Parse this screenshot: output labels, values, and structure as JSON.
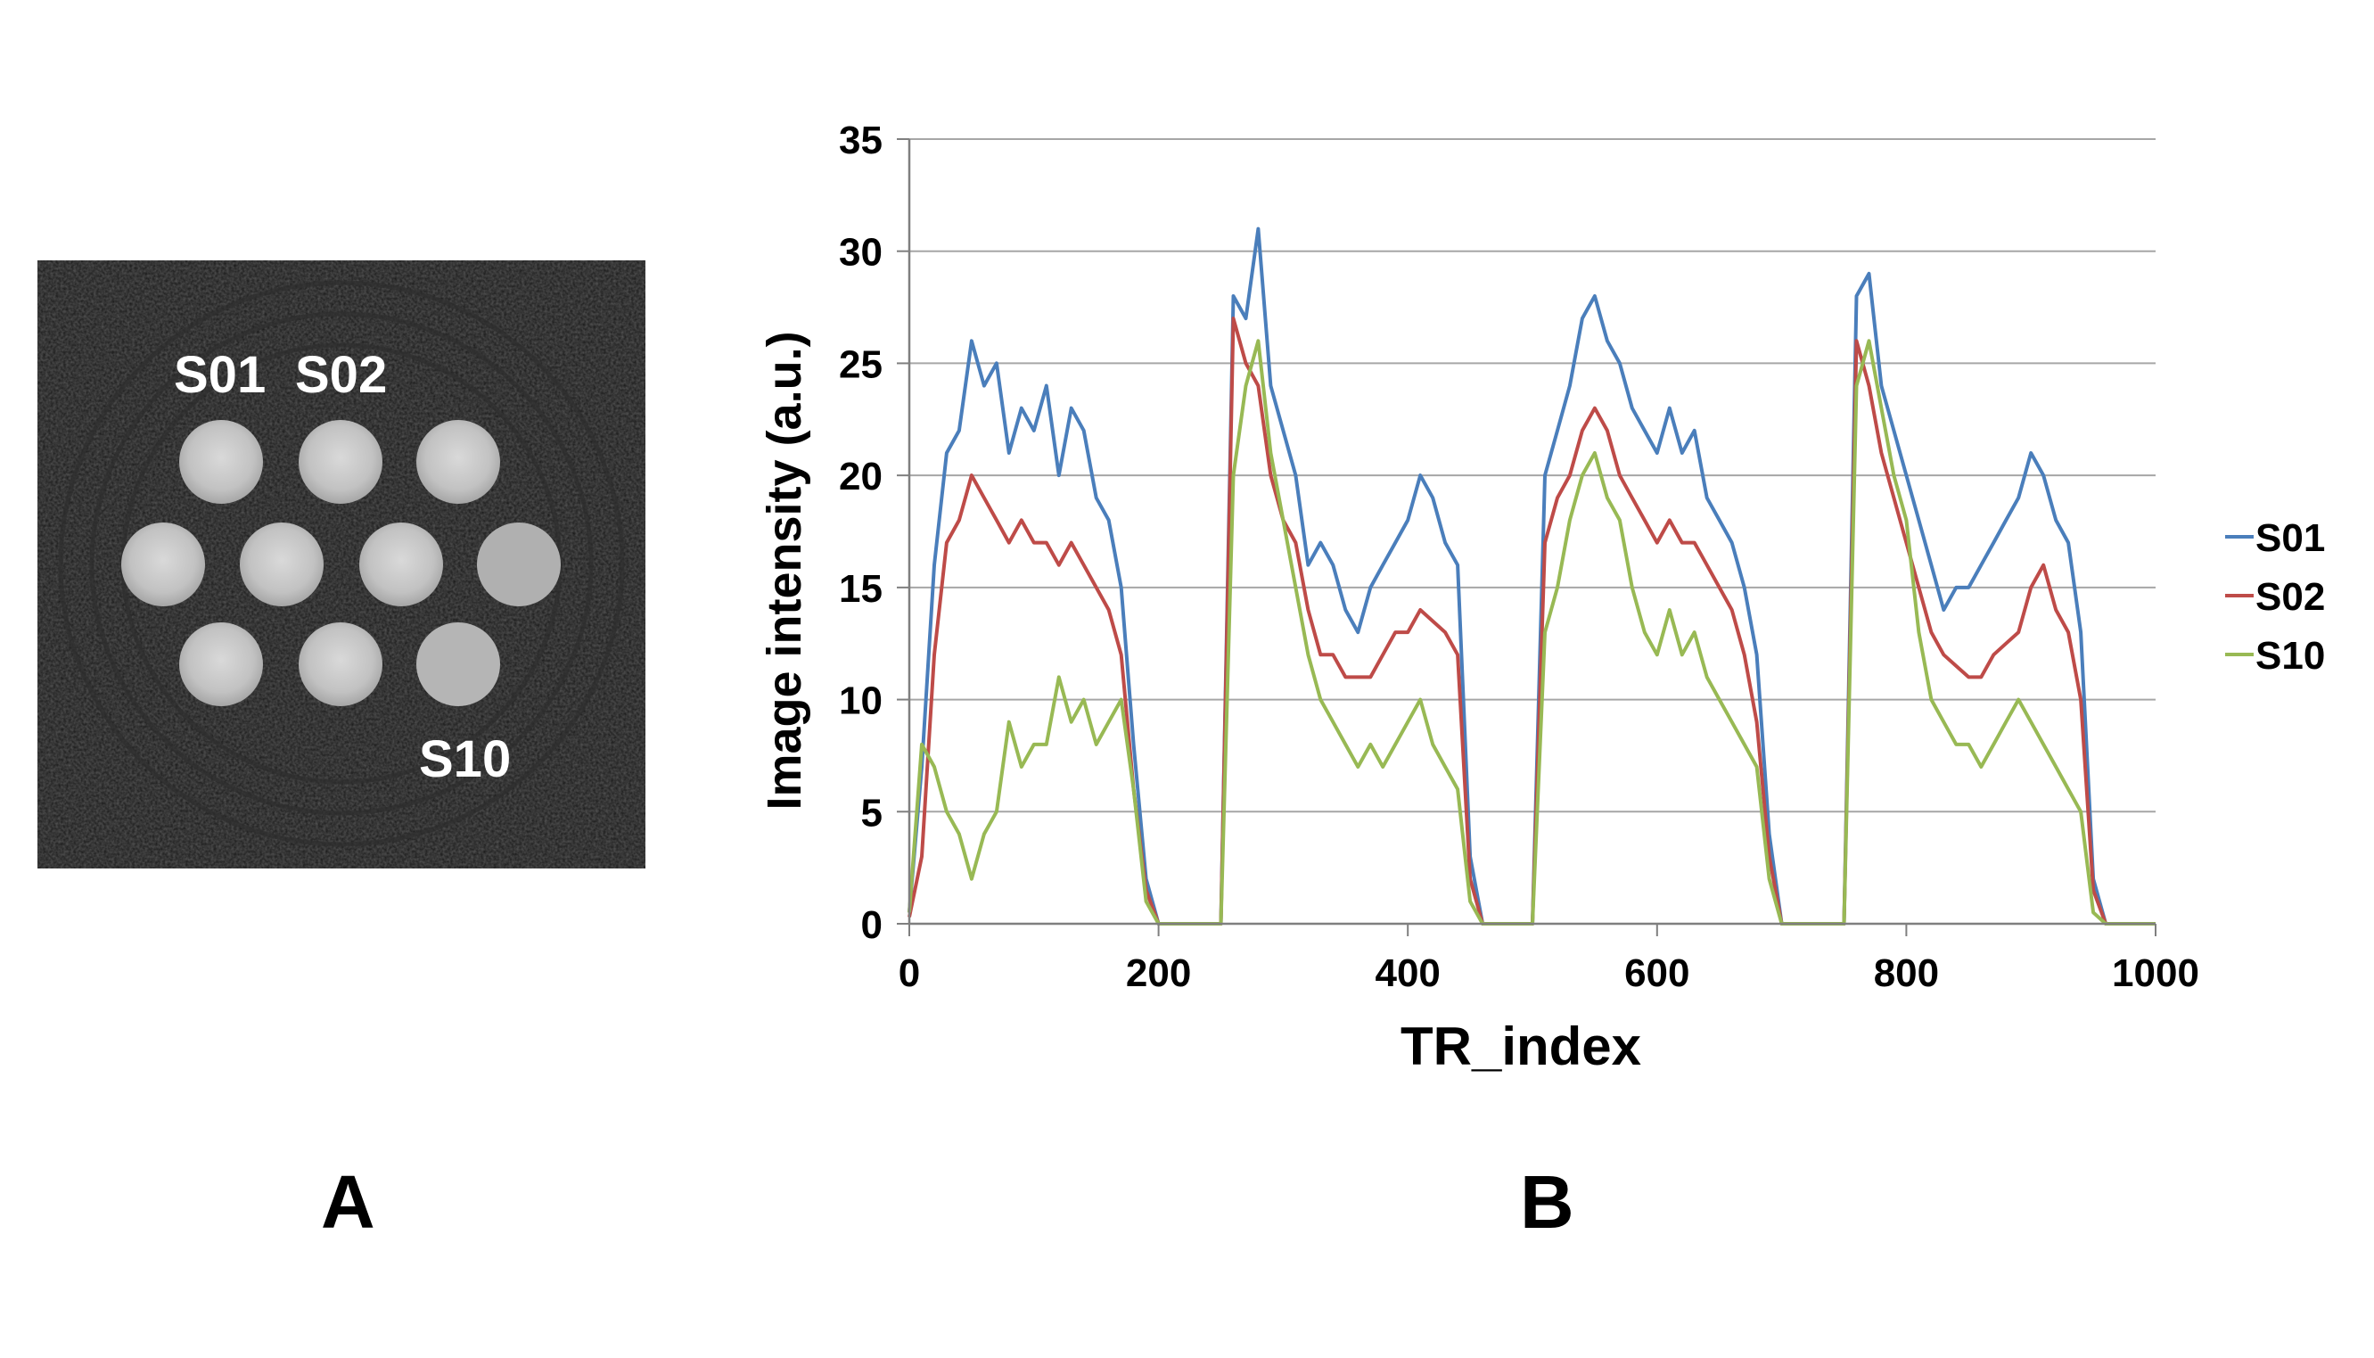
{
  "figure": {
    "panel_a_label": "A",
    "panel_b_label": "B"
  },
  "phantom": {
    "labels": [
      "S01",
      "S02",
      "S10"
    ]
  },
  "chart_data": {
    "type": "line",
    "title": "",
    "xlabel": "TR_index",
    "ylabel": "Image intensity (a.u.)",
    "xlim": [
      0,
      1000
    ],
    "ylim": [
      0,
      35
    ],
    "xticks": [
      0,
      200,
      400,
      600,
      800,
      1000
    ],
    "yticks": [
      0,
      5,
      10,
      15,
      20,
      25,
      30,
      35
    ],
    "grid": "horizontal",
    "legend_position": "right",
    "x": [
      0,
      10,
      20,
      30,
      40,
      50,
      60,
      70,
      80,
      90,
      100,
      110,
      120,
      130,
      140,
      150,
      160,
      170,
      180,
      190,
      200,
      210,
      220,
      230,
      240,
      250,
      260,
      270,
      280,
      290,
      300,
      310,
      320,
      330,
      340,
      350,
      360,
      370,
      380,
      390,
      400,
      410,
      420,
      430,
      440,
      450,
      460,
      470,
      480,
      490,
      500,
      510,
      520,
      530,
      540,
      550,
      560,
      570,
      580,
      590,
      600,
      610,
      620,
      630,
      640,
      650,
      660,
      670,
      680,
      690,
      700,
      710,
      720,
      730,
      740,
      750,
      760,
      770,
      780,
      790,
      800,
      810,
      820,
      830,
      840,
      850,
      860,
      870,
      880,
      890,
      900,
      910,
      920,
      930,
      940,
      950,
      960,
      970,
      980,
      990,
      1000
    ],
    "series": [
      {
        "name": "S01",
        "color": "#4a7ebb",
        "values": [
          0.5,
          7,
          16,
          21,
          22,
          26,
          24,
          25,
          21,
          23,
          22,
          24,
          20,
          23,
          22,
          19,
          18,
          15,
          8,
          2,
          0,
          0,
          0,
          0,
          0,
          0,
          28,
          27,
          31,
          24,
          22,
          20,
          16,
          17,
          16,
          14,
          13,
          15,
          16,
          17,
          18,
          20,
          19,
          17,
          16,
          3,
          0,
          0,
          0,
          0,
          0,
          20,
          22,
          24,
          27,
          28,
          26,
          25,
          23,
          22,
          21,
          23,
          21,
          22,
          19,
          18,
          17,
          15,
          12,
          4,
          0,
          0,
          0,
          0,
          0,
          0,
          28,
          29,
          24,
          22,
          20,
          18,
          16,
          14,
          15,
          15,
          16,
          17,
          18,
          19,
          21,
          20,
          18,
          17,
          13,
          2,
          0,
          0,
          0,
          0,
          0
        ]
      },
      {
        "name": "S02",
        "color": "#be4b48",
        "values": [
          0.3,
          3,
          12,
          17,
          18,
          20,
          19,
          18,
          17,
          18,
          17,
          17,
          16,
          17,
          16,
          15,
          14,
          12,
          6,
          1.5,
          0,
          0,
          0,
          0,
          0,
          0,
          27,
          25,
          24,
          20,
          18,
          17,
          14,
          12,
          12,
          11,
          11,
          11,
          12,
          13,
          13,
          14,
          13.5,
          13,
          12,
          2,
          0,
          0,
          0,
          0,
          0,
          17,
          19,
          20,
          22,
          23,
          22,
          20,
          19,
          18,
          17,
          18,
          17,
          17,
          16,
          15,
          14,
          12,
          9,
          3,
          0,
          0,
          0,
          0,
          0,
          0,
          26,
          24,
          21,
          19,
          17,
          15,
          13,
          12,
          11.5,
          11,
          11,
          12,
          12.5,
          13,
          15,
          16,
          14,
          13,
          10,
          1.5,
          0,
          0,
          0,
          0,
          0
        ]
      },
      {
        "name": "S10",
        "color": "#98b954",
        "values": [
          0.5,
          8,
          7,
          5,
          4,
          2,
          4,
          5,
          9,
          7,
          8,
          8,
          11,
          9,
          10,
          8,
          9,
          10,
          6,
          1,
          0,
          0,
          0,
          0,
          0,
          0,
          20,
          24,
          26,
          21,
          18,
          15,
          12,
          10,
          9,
          8,
          7,
          8,
          7,
          8,
          9,
          10,
          8,
          7,
          6,
          1,
          0,
          0,
          0,
          0,
          0,
          13,
          15,
          18,
          20,
          21,
          19,
          18,
          15,
          13,
          12,
          14,
          12,
          13,
          11,
          10,
          9,
          8,
          7,
          2,
          0,
          0,
          0,
          0,
          0,
          0,
          24,
          26,
          23,
          20,
          18,
          13,
          10,
          9,
          8,
          8,
          7,
          8,
          9,
          10,
          9,
          8,
          7,
          6,
          5,
          0.5,
          0,
          0,
          0,
          0,
          0
        ]
      }
    ]
  }
}
